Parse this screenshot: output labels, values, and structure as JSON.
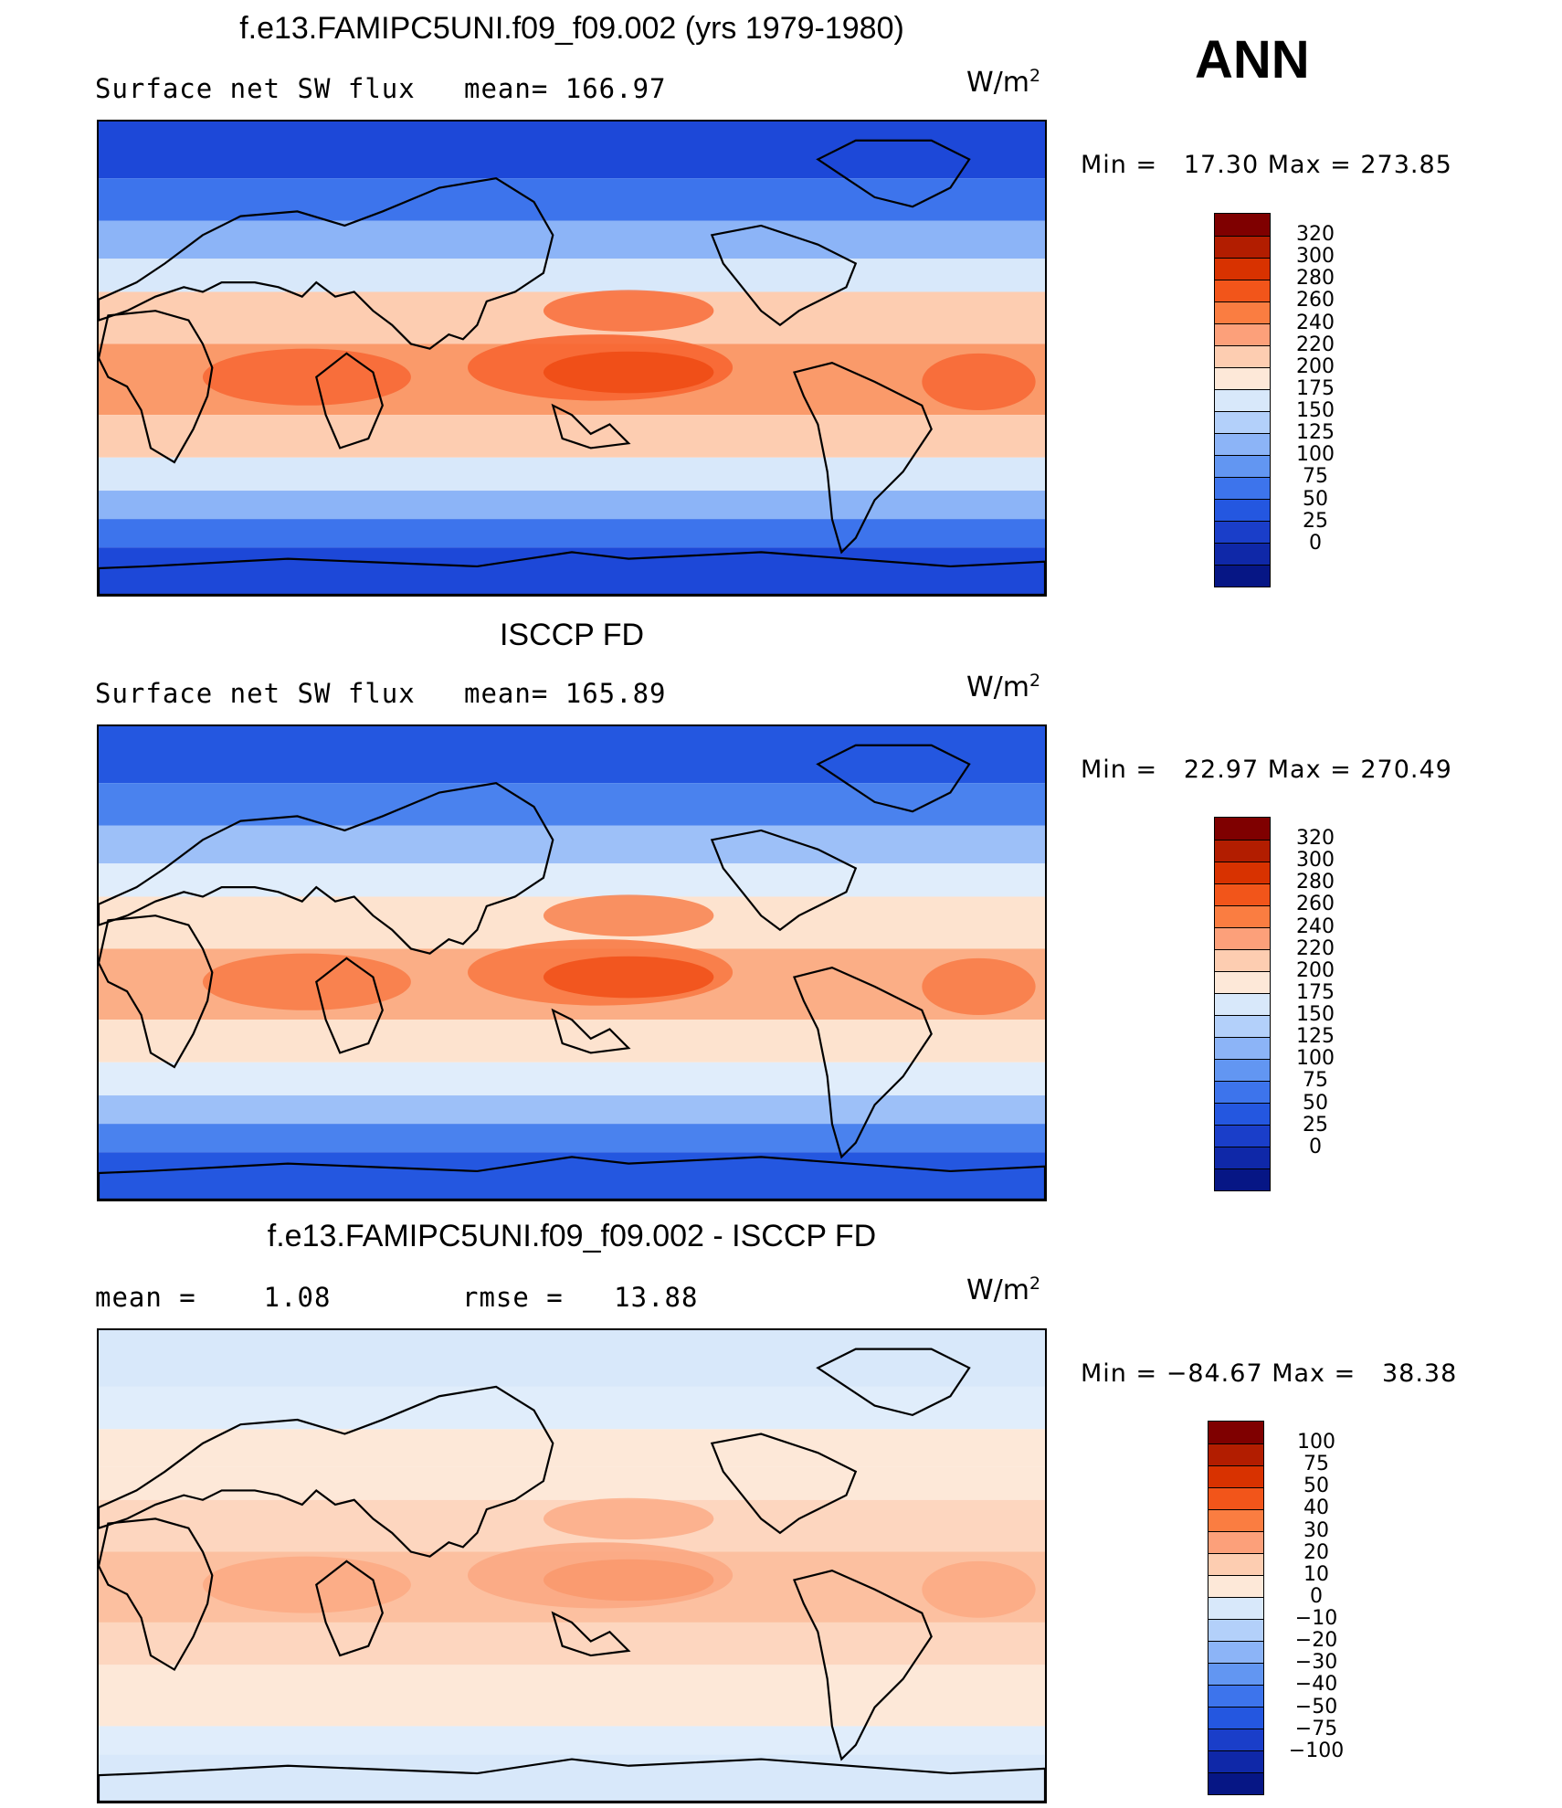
{
  "season_label": "ANN",
  "units_text": "W/m",
  "units_exp": "2",
  "panels": [
    {
      "title": "f.e13.FAMIPC5UNI.f09_f09.002 (yrs 1979-1980)",
      "left_text": "Surface net SW flux",
      "right_text": "mean= 166.97",
      "minmax": "Min =   17.30 Max = 273.85",
      "colorbar_labels": [
        "320",
        "300",
        "280",
        "260",
        "240",
        "220",
        "200",
        "175",
        "150",
        "125",
        "100",
        "75",
        "50",
        "25",
        "0"
      ],
      "colorbar_colors": [
        "#7f0000",
        "#b21d00",
        "#d83200",
        "#f2551a",
        "#fa7d41",
        "#fca07a",
        "#fdcdb1",
        "#fde8d8",
        "#d8e8fa",
        "#b3d0fa",
        "#8cb4f7",
        "#6296f2",
        "#3d74ec",
        "#2457e0",
        "#1a3ec9",
        "#0f28a8",
        "#061685"
      ],
      "map_palette": {
        "polar": "#1d48d8",
        "high": "#3d74ec",
        "mid": "#8cb4f7",
        "low": "#d8e8fa",
        "subtrop": "#fdcdb1",
        "warm": "#fa9a6a",
        "hot": "#f76632",
        "peak": "#f04f18"
      }
    },
    {
      "title": "ISCCP FD",
      "left_text": "Surface net SW flux",
      "right_text": "mean= 165.89",
      "minmax": "Min =   22.97 Max = 270.49",
      "colorbar_labels": [
        "320",
        "300",
        "280",
        "260",
        "240",
        "220",
        "200",
        "175",
        "150",
        "125",
        "100",
        "75",
        "50",
        "25",
        "0"
      ],
      "colorbar_colors": [
        "#7f0000",
        "#b21d00",
        "#d83200",
        "#f2551a",
        "#fa7d41",
        "#fca07a",
        "#fdcdb1",
        "#fde8d8",
        "#d8e8fa",
        "#b3d0fa",
        "#8cb4f7",
        "#6296f2",
        "#3d74ec",
        "#2457e0",
        "#1a3ec9",
        "#0f28a8",
        "#061685"
      ],
      "map_palette": {
        "polar": "#2457e0",
        "high": "#4a82ee",
        "mid": "#9dc0f8",
        "low": "#e0edfb",
        "subtrop": "#fde3cf",
        "warm": "#fbae86",
        "hot": "#f87a45",
        "peak": "#f2561f"
      }
    },
    {
      "title": "f.e13.FAMIPC5UNI.f09_f09.002 - ISCCP FD",
      "left_text": "mean =    1.08",
      "right_text": "rmse =   13.88",
      "minmax": "Min = −84.67 Max =   38.38",
      "colorbar_labels": [
        "100",
        "75",
        "50",
        "40",
        "30",
        "20",
        "10",
        "0",
        "−10",
        "−20",
        "−30",
        "−40",
        "−50",
        "−75",
        "−100"
      ],
      "colorbar_colors": [
        "#7f0000",
        "#b21d00",
        "#d83200",
        "#f2551a",
        "#fa7d41",
        "#fca07a",
        "#fdcdb1",
        "#fde8d8",
        "#d8e8fa",
        "#b3d0fa",
        "#8cb4f7",
        "#6296f2",
        "#3d74ec",
        "#2457e0",
        "#1a3ec9",
        "#0f28a8",
        "#061685"
      ],
      "map_palette": {
        "polar": "#d8e8fa",
        "high": "#e0edfb",
        "mid": "#fde8d8",
        "low": "#fde8d8",
        "subtrop": "#fdd6bf",
        "warm": "#fcc0a0",
        "hot": "#fba983",
        "peak": "#fa9b70"
      }
    }
  ]
}
